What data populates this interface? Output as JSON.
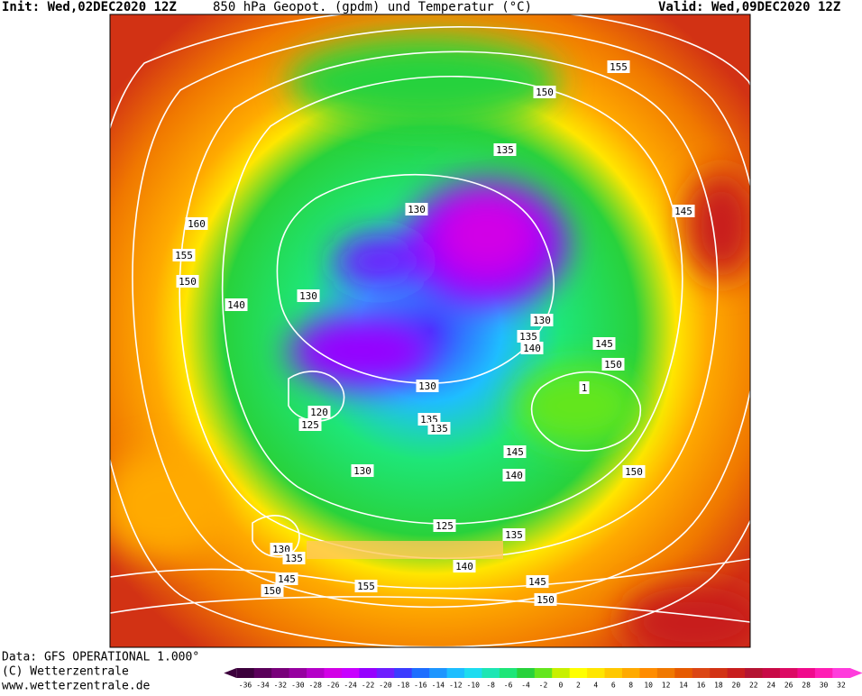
{
  "header": {
    "init": "Init: Wed,02DEC2020 12Z",
    "title": "850 hPa Geopot. (gpdm) und Temperatur (°C)",
    "valid": "Valid: Wed,09DEC2020 12Z"
  },
  "footer": {
    "data": "Data: GFS OPERATIONAL 1.000°",
    "copyright": "(C) Wetterzentrale",
    "url": "www.wetterzentrale.de"
  },
  "colorbar": {
    "labels": [
      -36,
      -34,
      -32,
      -30,
      -28,
      -26,
      -24,
      -22,
      -20,
      -18,
      -16,
      -14,
      -12,
      -10,
      -8,
      -6,
      -4,
      -2,
      0,
      2,
      4,
      6,
      8,
      10,
      12,
      14,
      16,
      18,
      20,
      22,
      24,
      26,
      28,
      30,
      32
    ],
    "colors": [
      "#3c003c",
      "#5a005a",
      "#78007a",
      "#9600a0",
      "#b400c8",
      "#d200e6",
      "#c800ff",
      "#9600ff",
      "#6e1eff",
      "#3c3cff",
      "#1e6eff",
      "#1e96ff",
      "#1ebeff",
      "#1edcf0",
      "#1ee6b4",
      "#1ee678",
      "#28d23c",
      "#64e61e",
      "#c8f000",
      "#ffff00",
      "#ffe600",
      "#ffc800",
      "#ffaa00",
      "#ff8c00",
      "#f07800",
      "#e65a00",
      "#dc4614",
      "#d23214",
      "#c81e1e",
      "#b41432",
      "#c80a46",
      "#dc0a64",
      "#f00a8c",
      "#ff1eb4",
      "#ff3cdc"
    ]
  },
  "map": {
    "contour_labels": [
      "155",
      "150",
      "135",
      "130",
      "145",
      "160",
      "155",
      "150",
      "140",
      "130",
      "130",
      "135",
      "140",
      "145",
      "150",
      "1",
      "130",
      "120",
      "125",
      "135",
      "135",
      "145",
      "140",
      "150",
      "130",
      "125",
      "135",
      "130",
      "135",
      "145",
      "150",
      "155",
      "150",
      "145",
      "140"
    ]
  }
}
